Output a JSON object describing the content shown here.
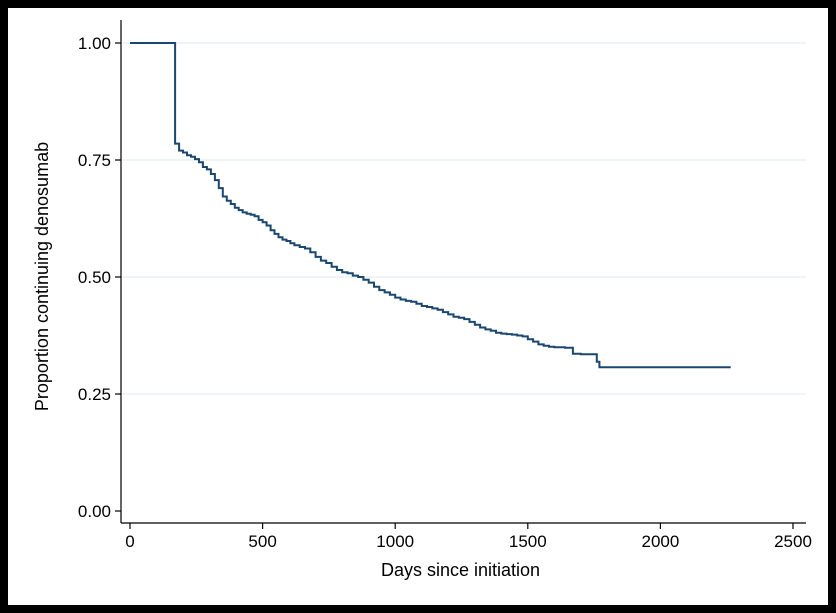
{
  "chart_data": {
    "type": "line",
    "step": true,
    "xlabel": "Days since initiation",
    "ylabel": "Proportion continuing denosumab",
    "xlim": [
      0,
      2500
    ],
    "ylim": [
      0,
      1
    ],
    "xticks": [
      0,
      500,
      1000,
      1500,
      2000,
      2500
    ],
    "xtick_labels": [
      "0",
      "500",
      "1000",
      "1500",
      "2000",
      "2500"
    ],
    "yticks": [
      0,
      0.25,
      0.5,
      0.75,
      1.0
    ],
    "ytick_labels": [
      "0.00",
      "0.25",
      "0.50",
      "0.75",
      "1.00"
    ],
    "grid": "horizontal",
    "colors": {
      "line": "#1a476f",
      "grid": "#eaf2f3",
      "background": "#ffffff",
      "border": "#000000"
    },
    "series": [
      {
        "x": [
          0,
          168,
          170,
          185,
          200,
          215,
          230,
          245,
          260,
          275,
          290,
          305,
          320,
          335,
          350,
          365,
          380,
          395,
          410,
          425,
          440,
          455,
          470,
          485,
          500,
          515,
          530,
          545,
          560,
          575,
          590,
          605,
          620,
          640,
          660,
          680,
          700,
          720,
          740,
          760,
          780,
          800,
          820,
          840,
          860,
          880,
          900,
          920,
          940,
          960,
          980,
          1000,
          1020,
          1040,
          1060,
          1080,
          1100,
          1120,
          1140,
          1160,
          1180,
          1200,
          1220,
          1240,
          1260,
          1280,
          1300,
          1320,
          1340,
          1360,
          1380,
          1400,
          1420,
          1440,
          1460,
          1480,
          1500,
          1520,
          1540,
          1560,
          1580,
          1600,
          1620,
          1640,
          1660,
          1670,
          1700,
          1730,
          1755,
          1760,
          1770,
          2265
        ],
        "y": [
          1.0,
          1.0,
          0.785,
          0.77,
          0.766,
          0.76,
          0.757,
          0.752,
          0.745,
          0.735,
          0.73,
          0.72,
          0.707,
          0.69,
          0.672,
          0.663,
          0.656,
          0.648,
          0.643,
          0.638,
          0.635,
          0.633,
          0.63,
          0.622,
          0.617,
          0.61,
          0.6,
          0.592,
          0.585,
          0.58,
          0.577,
          0.572,
          0.568,
          0.564,
          0.561,
          0.553,
          0.543,
          0.535,
          0.53,
          0.522,
          0.515,
          0.51,
          0.508,
          0.503,
          0.5,
          0.494,
          0.488,
          0.479,
          0.472,
          0.467,
          0.462,
          0.456,
          0.452,
          0.449,
          0.447,
          0.443,
          0.438,
          0.436,
          0.433,
          0.43,
          0.425,
          0.42,
          0.415,
          0.413,
          0.41,
          0.404,
          0.398,
          0.392,
          0.388,
          0.385,
          0.381,
          0.379,
          0.378,
          0.377,
          0.375,
          0.373,
          0.367,
          0.362,
          0.356,
          0.353,
          0.351,
          0.35,
          0.35,
          0.349,
          0.349,
          0.336,
          0.335,
          0.335,
          0.335,
          0.319,
          0.307,
          0.307
        ]
      }
    ]
  }
}
